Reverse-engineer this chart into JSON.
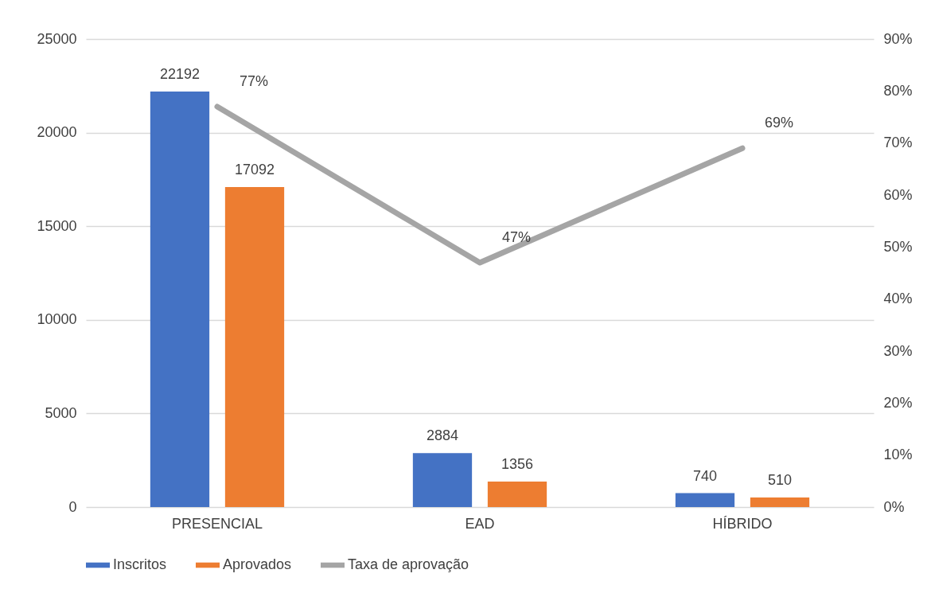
{
  "chart_data": {
    "type": "bar",
    "categories": [
      "PRESENCIAL",
      "EAD",
      "HÍBRIDO"
    ],
    "series": [
      {
        "name": "Inscritos",
        "color": "#4472c4",
        "values": [
          22192,
          2884,
          740
        ]
      },
      {
        "name": "Aprovados",
        "color": "#ed7d31",
        "values": [
          17092,
          1356,
          510
        ]
      },
      {
        "name": "Taxa de aprovação",
        "type": "line",
        "axis": "y2",
        "color": "#a5a5a5",
        "values": [
          77,
          47,
          69
        ],
        "value_labels": [
          "77%",
          "47%",
          "69%"
        ]
      }
    ],
    "ylim": [
      0,
      25000
    ],
    "yticks": [
      0,
      5000,
      10000,
      15000,
      20000,
      25000
    ],
    "y2lim": [
      0,
      90
    ],
    "y2ticks": [
      {
        "value": 0,
        "label": "0%"
      },
      {
        "value": 10,
        "label": "10%"
      },
      {
        "value": 20,
        "label": "20%"
      },
      {
        "value": 30,
        "label": "30%"
      },
      {
        "value": 40,
        "label": "40%"
      },
      {
        "value": 50,
        "label": "50%"
      },
      {
        "value": 60,
        "label": "60%"
      },
      {
        "value": 70,
        "label": "70%"
      },
      {
        "value": 80,
        "label": "80%"
      },
      {
        "value": 90,
        "label": "90%"
      }
    ],
    "grid": "y",
    "legend": "bottom",
    "data_labels": true
  }
}
